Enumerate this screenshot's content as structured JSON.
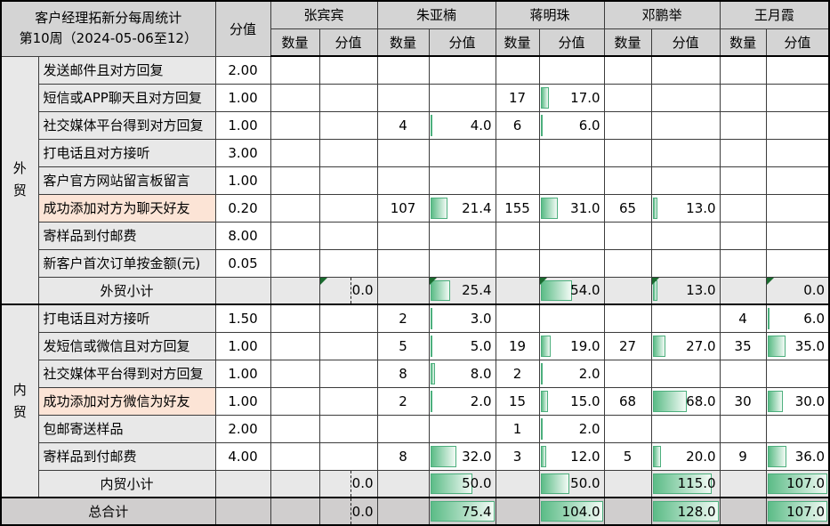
{
  "title": {
    "line1": "客户经理拓新分每周统计",
    "line2": "第10周（2024-05-06至12）"
  },
  "columns": {
    "score_header": "分值",
    "qty_subheader": "数量",
    "score_subheader": "分值"
  },
  "people": [
    {
      "name": "张宾宾",
      "max": 0,
      "zero_axis": true
    },
    {
      "name": "朱亚楠",
      "max": 75.4,
      "zero_axis": false
    },
    {
      "name": "蒋明珠",
      "max": 104,
      "zero_axis": false
    },
    {
      "name": "邓鹏举",
      "max": 128,
      "zero_axis": false
    },
    {
      "name": "王月霞",
      "max": 107,
      "zero_axis": false
    }
  ],
  "groups": [
    {
      "label": "外贸",
      "rows": [
        {
          "item": "发送邮件且对方回复",
          "score": "2.00",
          "highlight": false,
          "cells": [
            [
              "",
              ""
            ],
            [
              "",
              ""
            ],
            [
              "",
              ""
            ],
            [
              "",
              ""
            ],
            [
              "",
              ""
            ]
          ]
        },
        {
          "item": "短信或APP聊天且对方回复",
          "score": "1.00",
          "highlight": false,
          "cells": [
            [
              "",
              ""
            ],
            [
              "",
              ""
            ],
            [
              "17",
              "17.0"
            ],
            [
              "",
              ""
            ],
            [
              "",
              ""
            ]
          ]
        },
        {
          "item": "社交媒体平台得到对方回复",
          "score": "1.00",
          "highlight": false,
          "cells": [
            [
              "",
              ""
            ],
            [
              "4",
              "4.0"
            ],
            [
              "6",
              "6.0"
            ],
            [
              "",
              ""
            ],
            [
              "",
              ""
            ]
          ]
        },
        {
          "item": "打电话且对方接听",
          "score": "3.00",
          "highlight": false,
          "cells": [
            [
              "",
              ""
            ],
            [
              "",
              ""
            ],
            [
              "",
              ""
            ],
            [
              "",
              ""
            ],
            [
              "",
              ""
            ]
          ]
        },
        {
          "item": "客户官方网站留言板留言",
          "score": "1.00",
          "highlight": false,
          "cells": [
            [
              "",
              ""
            ],
            [
              "",
              ""
            ],
            [
              "",
              ""
            ],
            [
              "",
              ""
            ],
            [
              "",
              ""
            ]
          ]
        },
        {
          "item": "成功添加对方为聊天好友",
          "score": "0.20",
          "highlight": true,
          "cells": [
            [
              "",
              ""
            ],
            [
              "107",
              "21.4"
            ],
            [
              "155",
              "31.0"
            ],
            [
              "65",
              "13.0"
            ],
            [
              "",
              ""
            ]
          ]
        },
        {
          "item": "寄样品到付邮费",
          "score": "8.00",
          "highlight": false,
          "cells": [
            [
              "",
              ""
            ],
            [
              "",
              ""
            ],
            [
              "",
              ""
            ],
            [
              "",
              ""
            ],
            [
              "",
              ""
            ]
          ]
        },
        {
          "item": "新客户首次订单按金额(元)",
          "score": "0.05",
          "highlight": false,
          "cells": [
            [
              "",
              ""
            ],
            [
              "",
              ""
            ],
            [
              "",
              ""
            ],
            [
              "",
              ""
            ],
            [
              "",
              ""
            ]
          ]
        }
      ],
      "subtotal": {
        "label": "外贸小计",
        "values": [
          "0.0",
          "25.4",
          "54.0",
          "13.0",
          "0.0"
        ],
        "corner_marks": true
      }
    },
    {
      "label": "内贸",
      "rows": [
        {
          "item": "打电话且对方接听",
          "score": "1.50",
          "highlight": false,
          "cells": [
            [
              "",
              ""
            ],
            [
              "2",
              "3.0"
            ],
            [
              "",
              ""
            ],
            [
              "",
              ""
            ],
            [
              "4",
              "6.0"
            ]
          ]
        },
        {
          "item": "发短信或微信且对方回复",
          "score": "1.00",
          "highlight": false,
          "cells": [
            [
              "",
              ""
            ],
            [
              "5",
              "5.0"
            ],
            [
              "19",
              "19.0"
            ],
            [
              "27",
              "27.0"
            ],
            [
              "35",
              "35.0"
            ]
          ]
        },
        {
          "item": "社交媒体平台得到对方回复",
          "score": "1.00",
          "highlight": false,
          "cells": [
            [
              "",
              ""
            ],
            [
              "8",
              "8.0"
            ],
            [
              "2",
              "2.0"
            ],
            [
              "",
              ""
            ],
            [
              "",
              ""
            ]
          ]
        },
        {
          "item": "成功添加对方微信为好友",
          "score": "1.00",
          "highlight": true,
          "cells": [
            [
              "",
              ""
            ],
            [
              "2",
              "2.0"
            ],
            [
              "15",
              "15.0"
            ],
            [
              "68",
              "68.0"
            ],
            [
              "30",
              "30.0"
            ]
          ]
        },
        {
          "item": "包邮寄送样品",
          "score": "2.00",
          "highlight": false,
          "cells": [
            [
              "",
              ""
            ],
            [
              "",
              ""
            ],
            [
              "1",
              "2.0"
            ],
            [
              "",
              ""
            ],
            [
              "",
              ""
            ]
          ]
        },
        {
          "item": "寄样品到付邮费",
          "score": "4.00",
          "highlight": false,
          "cells": [
            [
              "",
              ""
            ],
            [
              "8",
              "32.0"
            ],
            [
              "3",
              "12.0"
            ],
            [
              "5",
              "20.0"
            ],
            [
              "9",
              "36.0"
            ]
          ]
        }
      ],
      "subtotal": {
        "label": "内贸小计",
        "values": [
          "0.0",
          "50.0",
          "50.0",
          "115.0",
          "107.0"
        ],
        "corner_marks": false
      }
    }
  ],
  "total": {
    "label": "总合计",
    "values": [
      "0.0",
      "75.4",
      "104.0",
      "128.0",
      "107.0"
    ]
  },
  "colors": {
    "header_bg": "#d4d4d4",
    "band_bg": "#e8e8e8",
    "total_bg": "#d0cece",
    "highlight_bg": "#fce4d6",
    "bar_gradient_start": "#5cbc87",
    "bar_gradient_end": "#f2faf5",
    "bar_border": "#4caf7d",
    "corner_flag": "#1a6b2f"
  }
}
